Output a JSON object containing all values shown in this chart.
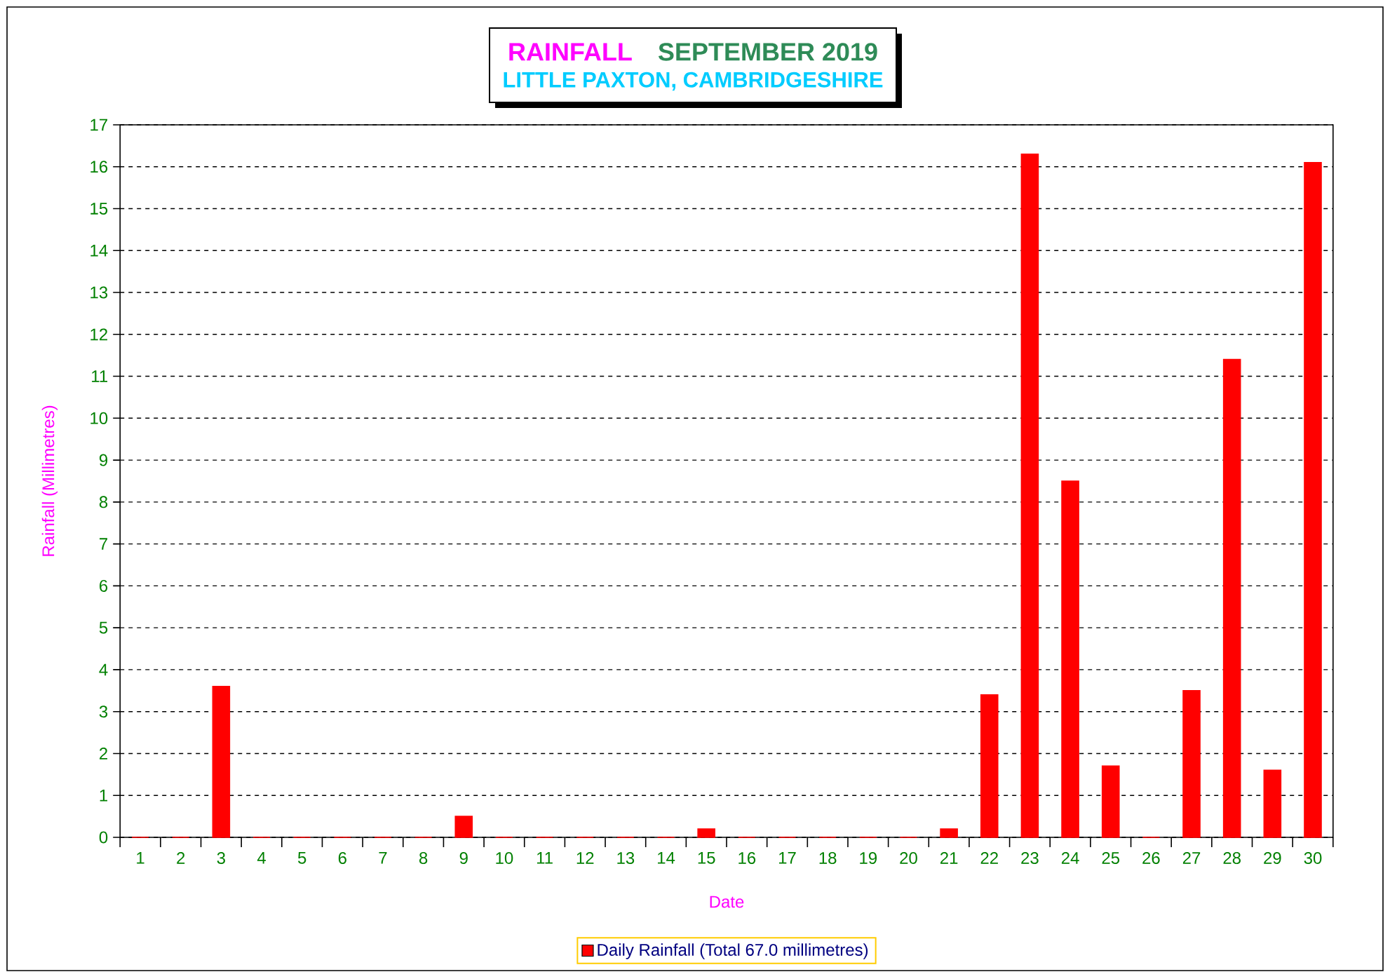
{
  "chart_data": {
    "type": "bar",
    "title": "RAINFALL",
    "subtitle": "SEPTEMBER 2019",
    "annotations": [
      "LITTLE PAXTON, CAMBRIDGESHIRE"
    ],
    "xlabel": "Date",
    "ylabel": "Rainfall (Millimetres)",
    "categories": [
      "1",
      "2",
      "3",
      "4",
      "5",
      "6",
      "7",
      "8",
      "9",
      "10",
      "11",
      "12",
      "13",
      "14",
      "15",
      "16",
      "17",
      "18",
      "19",
      "20",
      "21",
      "22",
      "23",
      "24",
      "25",
      "26",
      "27",
      "28",
      "29",
      "30"
    ],
    "series": [
      {
        "name": "Daily Rainfall (Total 67.0 millimetres)",
        "color": "#ff0000",
        "values": [
          0,
          0,
          3.6,
          0,
          0,
          0,
          0,
          0,
          0.5,
          0,
          0,
          0,
          0,
          0,
          0.2,
          0,
          0,
          0,
          0,
          0,
          0.2,
          3.4,
          16.3,
          8.5,
          1.7,
          0,
          3.5,
          11.4,
          1.6,
          16.1
        ]
      }
    ],
    "ylim": [
      0,
      17
    ],
    "yticks": [
      0,
      1,
      2,
      3,
      4,
      5,
      6,
      7,
      8,
      9,
      10,
      11,
      12,
      13,
      14,
      15,
      16,
      17
    ],
    "grid": "y",
    "legend": "bottom"
  }
}
